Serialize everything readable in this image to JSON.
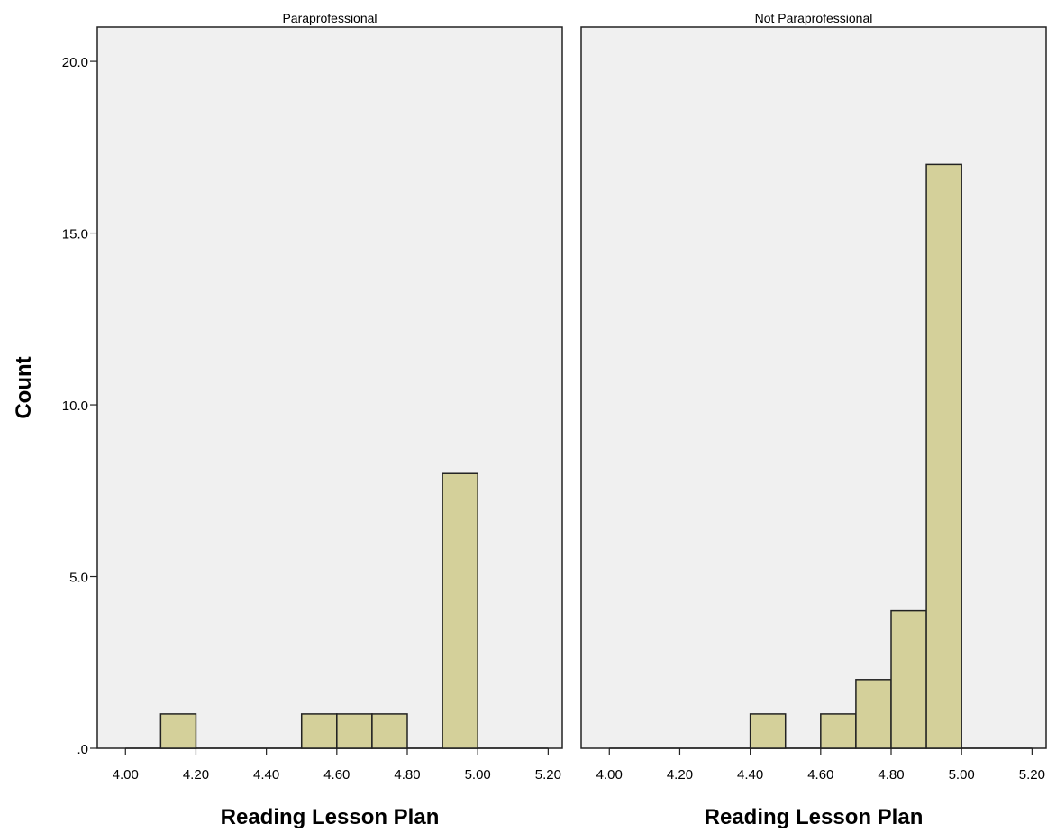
{
  "chart_data": {
    "type": "bar",
    "ylabel": "Count",
    "ylim": [
      0,
      21
    ],
    "yticks": [
      0,
      5,
      10,
      15,
      20
    ],
    "ytick_labels": [
      ".0",
      "5.0",
      "10.0",
      "15.0",
      "20.0"
    ],
    "xlim": [
      3.92,
      5.24
    ],
    "xticks": [
      4.0,
      4.2,
      4.4,
      4.6,
      4.8,
      5.0,
      5.2
    ],
    "xtick_labels": [
      "4.00",
      "4.20",
      "4.40",
      "4.60",
      "4.80",
      "5.00",
      "5.20"
    ],
    "bin_width": 0.1,
    "bins": [
      4.0,
      4.1,
      4.2,
      4.3,
      4.4,
      4.5,
      4.6,
      4.7,
      4.8,
      4.9,
      5.0,
      5.1
    ],
    "bar_color": "#d4d09a",
    "panel_background": "#f0f0f0",
    "panels": [
      {
        "title": "Paraprofessional",
        "xlabel": "Reading Lesson Plan",
        "counts": [
          0,
          1,
          0,
          0,
          0,
          1,
          1,
          1,
          0,
          8,
          0,
          0
        ]
      },
      {
        "title": "Not Paraprofessional",
        "xlabel": "Reading Lesson Plan",
        "counts": [
          0,
          0,
          0,
          0,
          1,
          0,
          1,
          2,
          4,
          17,
          0,
          0
        ]
      }
    ]
  }
}
